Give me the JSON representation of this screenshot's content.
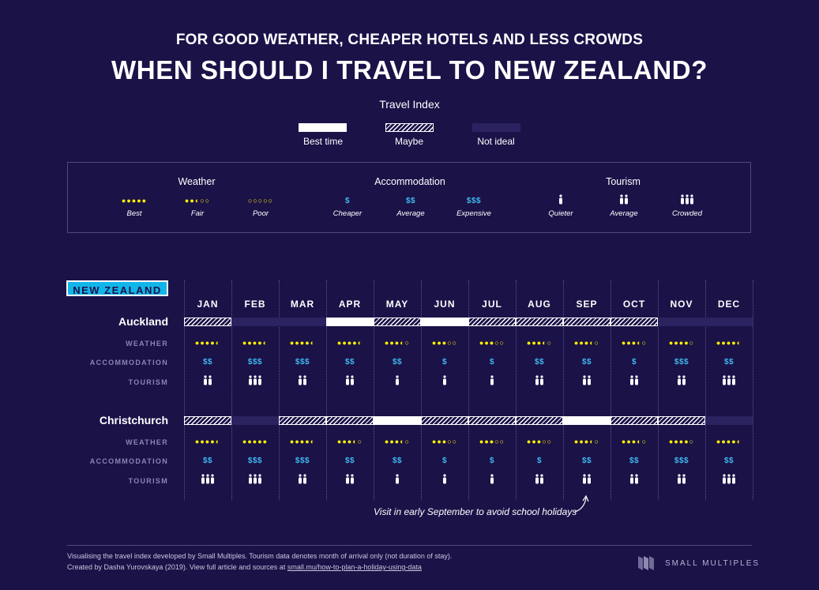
{
  "subtitle": "FOR GOOD WEATHER, CHEAPER HOTELS AND LESS CROWDS",
  "title": "WHEN SHOULD I TRAVEL TO NEW ZEALAND?",
  "legend": {
    "title": "Travel Index",
    "items": [
      {
        "key": "best",
        "label": "Best time"
      },
      {
        "key": "maybe",
        "label": "Maybe"
      },
      {
        "key": "not",
        "label": "Not ideal"
      }
    ]
  },
  "key": {
    "weather": {
      "heading": "Weather",
      "items": [
        {
          "symbol": "●●●●●",
          "label": "Best"
        },
        {
          "symbol": "●●◐○○",
          "label": "Fair"
        },
        {
          "symbol": "○○○○○",
          "label": "Poor"
        }
      ]
    },
    "accommodation": {
      "heading": "Accommodation",
      "items": [
        {
          "symbol": "$",
          "label": "Cheaper"
        },
        {
          "symbol": "$$",
          "label": "Average"
        },
        {
          "symbol": "$$$",
          "label": "Expensive"
        }
      ]
    },
    "tourism": {
      "heading": "Tourism",
      "items": [
        {
          "symbol": "🯅",
          "label": "Quieter"
        },
        {
          "symbol": "🯅🯅",
          "label": "Average"
        },
        {
          "symbol": "🯅🯅🯅",
          "label": "Crowded"
        }
      ]
    }
  },
  "country_label": "NEW ZEALAND",
  "row_labels": {
    "weather": "WEATHER",
    "accommodation": "ACCOMMODATION",
    "tourism": "TOURISM"
  },
  "colors": {
    "background": "#1b1248",
    "weather": "#fff200",
    "accommodation": "#3fb9f0",
    "tourism": "#ffffff",
    "best": "#ffffff",
    "not_ideal": "#2b2360",
    "country_tag": "#12b5ea"
  },
  "chart_data": {
    "type": "table",
    "categories": [
      "JAN",
      "FEB",
      "MAR",
      "APR",
      "MAY",
      "JUN",
      "JUL",
      "AUG",
      "SEP",
      "OCT",
      "NOV",
      "DEC"
    ],
    "cities": [
      {
        "name": "Auckland",
        "travel_index": [
          "maybe",
          "not",
          "not",
          "best",
          "maybe",
          "best",
          "maybe",
          "maybe",
          "maybe",
          "maybe",
          "not",
          "not"
        ],
        "weather": [
          4.5,
          4.5,
          4.5,
          4.5,
          3.5,
          3,
          3,
          3.5,
          3.5,
          3.5,
          4,
          4.5
        ],
        "accommodation": [
          2,
          3,
          3,
          2,
          2,
          1,
          1,
          2,
          2,
          1,
          3,
          2
        ],
        "tourism": [
          2,
          3,
          2,
          2,
          1,
          1,
          1,
          2,
          2,
          2,
          2,
          3
        ]
      },
      {
        "name": "Christchurch",
        "travel_index": [
          "maybe",
          "not",
          "maybe",
          "maybe",
          "best",
          "maybe",
          "maybe",
          "maybe",
          "best",
          "maybe",
          "maybe",
          "not"
        ],
        "weather": [
          4.5,
          5,
          4.5,
          3.5,
          3.5,
          3,
          3,
          3,
          3.5,
          3.5,
          4,
          4.5
        ],
        "accommodation": [
          2,
          3,
          3,
          2,
          2,
          1,
          1,
          1,
          2,
          2,
          3,
          2
        ],
        "tourism": [
          3,
          3,
          2,
          2,
          1,
          1,
          1,
          2,
          2,
          2,
          2,
          3
        ]
      }
    ]
  },
  "note": "Visit in early September to avoid school holidays",
  "footer": {
    "line1": "Visualising the travel index developed by Small Multiples. Tourism data denotes month of arrival only (not duration of stay).",
    "line2": "Created by Dasha Yurovskaya (2019). View full article and sources at ",
    "link": "small.mu/how-to-plan-a-holiday-using-data"
  },
  "brand": "SMALL MULTIPLES"
}
